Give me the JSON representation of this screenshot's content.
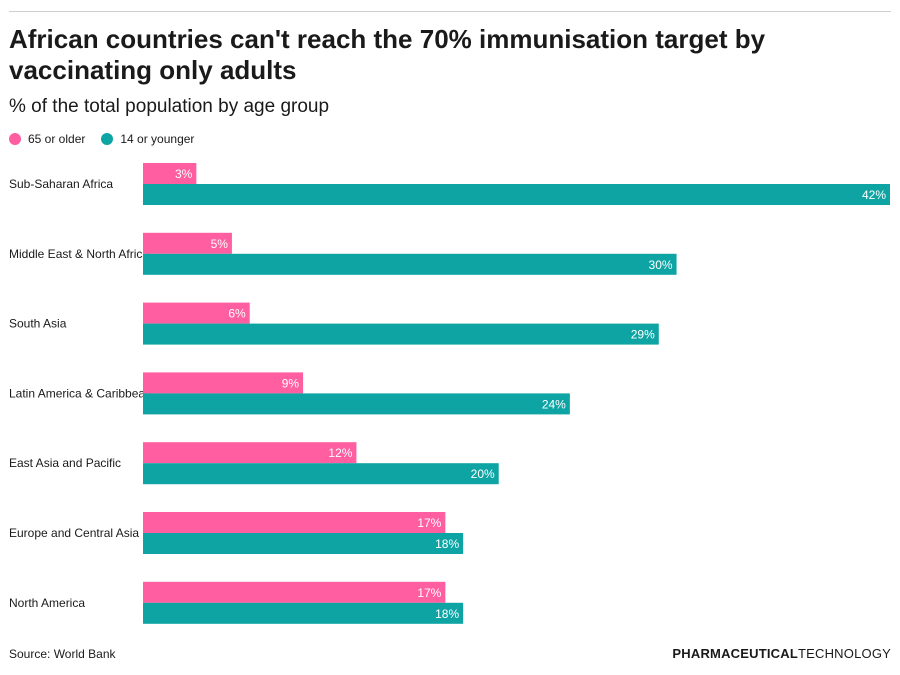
{
  "header": {
    "title": "African countries can't reach the 70% immunisation target by vaccinating only adults",
    "subtitle": "% of the total population by age group"
  },
  "legend": {
    "older_label": "65 or older",
    "younger_label": "14 or younger"
  },
  "colors": {
    "older": "#ff5ea0",
    "younger": "#0fa4a4",
    "bar_label": "#ffffff",
    "axis_text": "#1a1a1a"
  },
  "chart_data": {
    "type": "bar",
    "orientation": "horizontal",
    "title": "African countries can't reach the 70% immunisation target by vaccinating only adults",
    "subtitle": "% of the total population by age group",
    "categories": [
      "Sub-Saharan Africa",
      "Middle East & North Africa",
      "South Asia",
      "Latin America & Caribbean",
      "East Asia and Pacific",
      "Europe and Central Asia",
      "North America"
    ],
    "series": [
      {
        "name": "65 or older",
        "values": [
          3,
          5,
          6,
          9,
          12,
          17,
          17
        ]
      },
      {
        "name": "14 or younger",
        "values": [
          42,
          30,
          29,
          24,
          20,
          18,
          18
        ]
      }
    ],
    "value_suffix": "%",
    "xlim": [
      0,
      42
    ],
    "xlabel": "",
    "ylabel": "",
    "grid": false,
    "legend_position": "top-left"
  },
  "footer": {
    "source": "Source: World Bank",
    "brand_strong": "PHARMACEUTICAL",
    "brand_light": "TECHNOLOGY"
  }
}
